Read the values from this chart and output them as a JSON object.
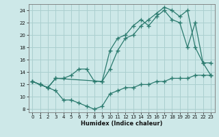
{
  "line1_x": [
    0,
    1,
    2,
    3,
    4,
    5,
    6,
    7,
    8,
    9,
    10,
    11,
    12,
    13,
    14,
    15,
    16,
    17,
    18,
    19,
    20,
    21,
    22,
    23
  ],
  "line1_y": [
    12.5,
    12.0,
    11.5,
    11.0,
    9.5,
    9.5,
    9.0,
    8.5,
    8.0,
    8.5,
    10.5,
    11.0,
    11.5,
    11.5,
    12.0,
    12.0,
    12.5,
    12.5,
    13.0,
    13.0,
    13.0,
    13.5,
    13.5,
    13.5
  ],
  "line2_x": [
    0,
    1,
    2,
    3,
    9,
    10,
    11,
    12,
    13,
    14,
    15,
    16,
    17,
    18,
    19,
    20,
    21,
    22,
    23
  ],
  "line2_y": [
    12.5,
    12.0,
    11.5,
    13.0,
    12.5,
    14.5,
    17.5,
    19.5,
    20.0,
    21.5,
    22.5,
    23.5,
    24.5,
    24.0,
    23.0,
    24.0,
    18.0,
    15.5,
    13.5
  ],
  "line3_x": [
    0,
    1,
    2,
    3,
    4,
    5,
    6,
    7,
    8,
    9,
    10,
    11,
    12,
    13,
    14,
    15,
    16,
    17,
    18,
    19,
    20,
    21,
    22,
    23
  ],
  "line3_y": [
    12.5,
    12.0,
    11.5,
    13.0,
    13.0,
    13.5,
    14.5,
    14.5,
    12.5,
    12.5,
    17.5,
    19.5,
    20.0,
    21.5,
    22.5,
    21.5,
    23.0,
    24.0,
    22.5,
    22.0,
    18.0,
    22.0,
    15.5,
    15.5
  ],
  "color": "#2a7a6e",
  "bg_color": "#cde8e8",
  "grid_color": "#aacfcf",
  "xlabel": "Humidex (Indice chaleur)",
  "xlim": [
    -0.5,
    23.5
  ],
  "ylim": [
    7.5,
    25.0
  ],
  "yticks": [
    8,
    10,
    12,
    14,
    16,
    18,
    20,
    22,
    24
  ],
  "xticks": [
    0,
    1,
    2,
    3,
    4,
    5,
    6,
    7,
    8,
    9,
    10,
    11,
    12,
    13,
    14,
    15,
    16,
    17,
    18,
    19,
    20,
    21,
    22,
    23
  ]
}
